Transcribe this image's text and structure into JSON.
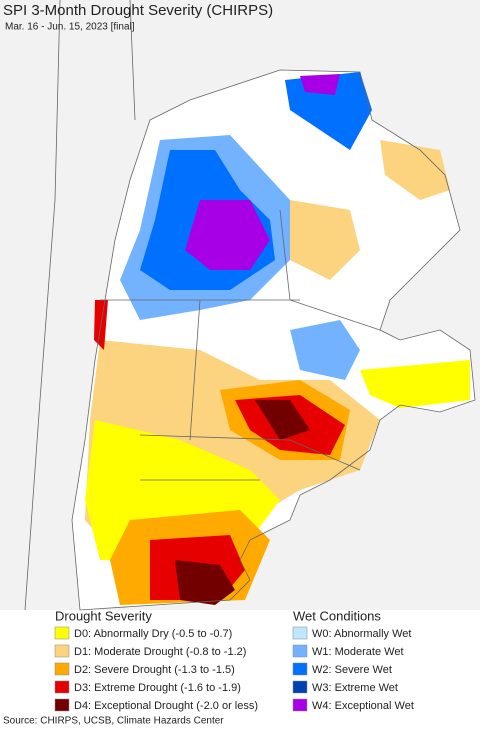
{
  "header": {
    "title": "SPI 3-Month Drought Severity (CHIRPS)",
    "subtitle": "Mar. 16 - Jun. 15, 2023 [final]"
  },
  "legend": {
    "drought": {
      "title": "Drought Severity",
      "items": [
        {
          "label": "D0: Abnormally Dry (-0.5 to -0.7)",
          "color": "#ffff00"
        },
        {
          "label": "D1: Moderate Drought (-0.8 to -1.2)",
          "color": "#fcd37f"
        },
        {
          "label": "D2: Severe Drought (-1.3 to -1.5)",
          "color": "#ffaa00"
        },
        {
          "label": "D3: Extreme Drought (-1.6 to -1.9)",
          "color": "#e60000"
        },
        {
          "label": "D4: Exceptional Drought (-2.0 or less)",
          "color": "#730000"
        }
      ]
    },
    "wet": {
      "title": "Wet Conditions",
      "items": [
        {
          "label": "W0: Abnormally Wet",
          "color": "#bee8ff"
        },
        {
          "label": "W1: Moderate Wet",
          "color": "#73b2ff"
        },
        {
          "label": "W2: Severe Wet",
          "color": "#0070ff"
        },
        {
          "label": "W3: Extreme Wet",
          "color": "#0040b0"
        },
        {
          "label": "W4: Exceptional Wet",
          "color": "#a800e6"
        }
      ]
    }
  },
  "footer": {
    "source": "Source: CHIRPS, UCSB, Climate Hazards Center"
  }
}
